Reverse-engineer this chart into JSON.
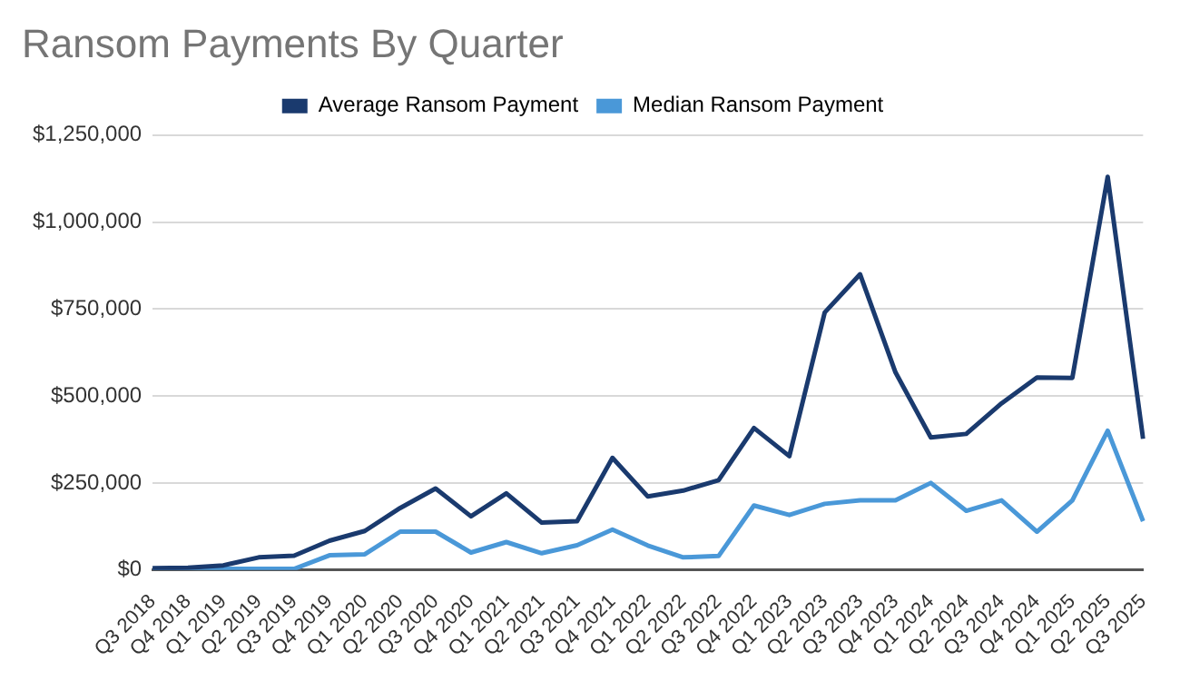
{
  "chart_data": {
    "type": "line",
    "title": "Ransom Payments By Quarter",
    "categories": [
      "Q3 2018",
      "Q4 2018",
      "Q1 2019",
      "Q2 2019",
      "Q3 2019",
      "Q4 2019",
      "Q1 2020",
      "Q2 2020",
      "Q3 2020",
      "Q4 2020",
      "Q1 2021",
      "Q2 2021",
      "Q3 2021",
      "Q4 2021",
      "Q1 2022",
      "Q2 2022",
      "Q3 2022",
      "Q4 2022",
      "Q1 2023",
      "Q2 2023",
      "Q3 2023",
      "Q4 2023",
      "Q1 2024",
      "Q2 2024",
      "Q3 2024",
      "Q4 2024",
      "Q1 2025",
      "Q2 2025",
      "Q3 2025"
    ],
    "series": [
      {
        "name": "Average Ransom Payment",
        "color": "#1a3a6e",
        "values": [
          5000,
          6000,
          13000,
          36000,
          41000,
          84000,
          112000,
          178000,
          234000,
          154000,
          220000,
          136000,
          140000,
          322000,
          211000,
          228000,
          258000,
          408000,
          327000,
          740000,
          850000,
          568000,
          381000,
          391000,
          479000,
          553000,
          552000,
          1130000,
          377000
        ]
      },
      {
        "name": "Median Ransom Payment",
        "color": "#4a98d8",
        "values": [
          2000,
          3000,
          3000,
          3000,
          3000,
          42000,
          45000,
          110000,
          110000,
          50000,
          80000,
          48000,
          71000,
          116000,
          70000,
          36000,
          40000,
          185000,
          158000,
          190000,
          200000,
          200000,
          250000,
          170000,
          200000,
          110000,
          200000,
          400000,
          140000
        ]
      }
    ],
    "ylim": [
      0,
      1250000
    ],
    "yticks": [
      {
        "value": 0,
        "label": "$0"
      },
      {
        "value": 250000,
        "label": "$250,000"
      },
      {
        "value": 500000,
        "label": "$500,000"
      },
      {
        "value": 750000,
        "label": "$750,000"
      },
      {
        "value": 1000000,
        "label": "$1,000,000"
      },
      {
        "value": 1250000,
        "label": "$1,250,000"
      }
    ],
    "grid": "y",
    "legend": "top",
    "marker": "none",
    "line_style": "solid"
  }
}
